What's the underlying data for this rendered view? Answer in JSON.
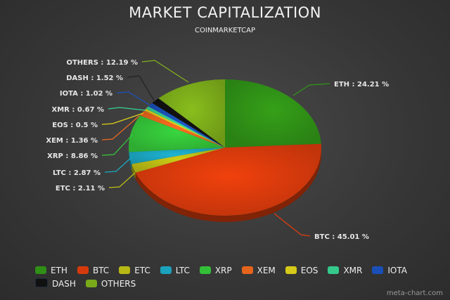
{
  "chart_data": {
    "type": "pie",
    "title": "MARKET CAPITALIZATION",
    "subtitle": "COINMARKETCAP",
    "categories": [
      "ETH",
      "BTC",
      "ETC",
      "LTC",
      "XRP",
      "XEM",
      "EOS",
      "XMR",
      "IOTA",
      "DASH",
      "OTHERS"
    ],
    "values": [
      24.21,
      45.01,
      2.11,
      2.87,
      8.86,
      1.36,
      0.5,
      0.67,
      1.02,
      1.52,
      12.19
    ],
    "labels": [
      "ETH : 24.21 %",
      "BTC : 45.01 %",
      "ETC : 2.11 %",
      "LTC : 2.87 %",
      "XRP : 8.86 %",
      "XEM : 1.36 %",
      "EOS : 0.5 %",
      "XMR : 0.67 %",
      "IOTA : 1.02 %",
      "DASH : 1.52 %",
      "OTHERS : 12.19 %"
    ],
    "colors": [
      "#2f8f16",
      "#d63a0c",
      "#b7b814",
      "#1ba2bd",
      "#33bf38",
      "#e5641c",
      "#d6c918",
      "#35c98c",
      "#1a4fb8",
      "#111111",
      "#7aaa1a"
    ],
    "legend_position": "bottom"
  },
  "watermark": "meta-chart.com"
}
